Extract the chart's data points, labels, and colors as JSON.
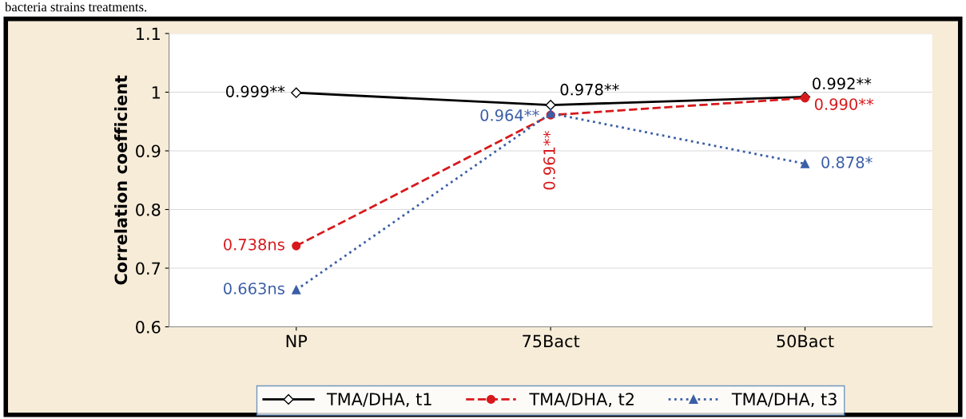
{
  "chart_data": {
    "type": "line",
    "ylabel": "Correlation coefficient",
    "categories": [
      "NP",
      "75Bact",
      "50Bact"
    ],
    "series": [
      {
        "name": "TMA/DHA, t1",
        "color": "#000000",
        "values": [
          0.999,
          0.978,
          0.992
        ],
        "marker": "diamond",
        "line_style": "solid",
        "value_labels": [
          "0.999**",
          "0.978**",
          "0.992**"
        ]
      },
      {
        "name": "TMA/DHA, t2",
        "color": "#d7191c",
        "values": [
          0.738,
          0.961,
          0.99
        ],
        "marker": "circle",
        "line_style": "dashed",
        "value_labels": [
          "0.738ns",
          "0.961**",
          "0.990**"
        ]
      },
      {
        "name": "TMA/DHA, t3",
        "color": "#3b5ea6",
        "values": [
          0.663,
          0.964,
          0.878
        ],
        "marker": "triangle",
        "line_style": "dotted",
        "value_labels": [
          "0.663ns",
          "0.964**",
          "0.878*"
        ]
      }
    ],
    "ylim": [
      0.6,
      1.1
    ],
    "yticks": [
      0.6,
      0.7,
      0.8,
      0.9,
      1,
      1.1
    ],
    "grid": "y",
    "legend": "bottom",
    "annotations": [
      "bacteria strains treatments."
    ]
  }
}
